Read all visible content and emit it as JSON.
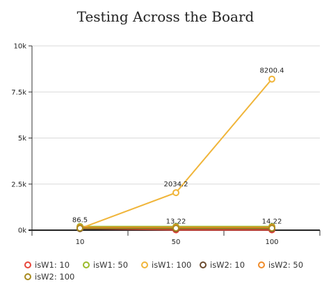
{
  "chart_data": {
    "type": "line",
    "title": "Testing Across the Board",
    "xlabel": "",
    "ylabel": "",
    "categories": [
      "10",
      "50",
      "100"
    ],
    "ylim": [
      0,
      10000
    ],
    "y_ticks": [
      {
        "value": 0,
        "label": "0k"
      },
      {
        "value": 2500,
        "label": "2.5k"
      },
      {
        "value": 5000,
        "label": "5k"
      },
      {
        "value": 7500,
        "label": "7.5k"
      },
      {
        "value": 10000,
        "label": "10k"
      }
    ],
    "grid": true,
    "legend_position": "bottom",
    "series": [
      {
        "name": "isW1: 10",
        "color": "#e8463a",
        "values": [
          86.5,
          13.22,
          14.22
        ],
        "labels": [
          "86.5",
          "13.22",
          "14.22"
        ]
      },
      {
        "name": "isW1: 50",
        "color": "#9bbb2a",
        "values": [
          200,
          200,
          200
        ],
        "labels": []
      },
      {
        "name": "isW1: 100",
        "color": "#f0b53a",
        "values": [
          86.5,
          2034.2,
          8200.4
        ],
        "labels": [
          "",
          "2034.2",
          "8200.4"
        ]
      },
      {
        "name": "isW2: 10",
        "color": "#6b4a2e",
        "values": [
          80,
          80,
          80
        ],
        "labels": []
      },
      {
        "name": "isW2: 50",
        "color": "#f08c2a",
        "values": [
          150,
          150,
          150
        ],
        "labels": []
      },
      {
        "name": "isW2: 100",
        "color": "#a88a1e",
        "values": [
          110,
          110,
          110
        ],
        "labels": []
      }
    ]
  }
}
